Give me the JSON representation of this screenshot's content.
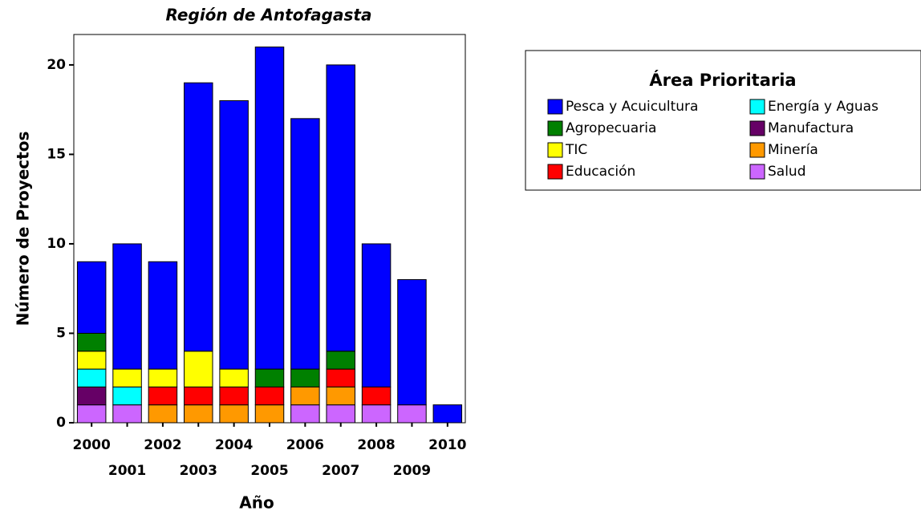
{
  "chart_data": {
    "type": "stacked_bar",
    "title": "Región de Antofagasta",
    "x_label": "Año",
    "y_label": "Número de Proyectos",
    "legend_title": "Área Prioritaria",
    "categories": [
      "2000",
      "2001",
      "2002",
      "2003",
      "2004",
      "2005",
      "2006",
      "2007",
      "2008",
      "2009",
      "2010"
    ],
    "series": [
      {
        "name": "Salud",
        "color": "#cc66ff",
        "values": [
          1,
          1,
          0,
          0,
          0,
          0,
          1,
          1,
          1,
          1,
          0
        ]
      },
      {
        "name": "Minería",
        "color": "#ff9900",
        "values": [
          0,
          0,
          1,
          1,
          1,
          1,
          1,
          1,
          0,
          0,
          0
        ]
      },
      {
        "name": "Manufactura",
        "color": "#660066",
        "values": [
          1,
          0,
          0,
          0,
          0,
          0,
          0,
          0,
          0,
          0,
          0
        ]
      },
      {
        "name": "Educación",
        "color": "#ff0000",
        "values": [
          0,
          0,
          1,
          1,
          1,
          1,
          0,
          1,
          1,
          0,
          0
        ]
      },
      {
        "name": "Energía y Aguas",
        "color": "#00ffff",
        "values": [
          1,
          1,
          0,
          0,
          0,
          0,
          0,
          0,
          0,
          0,
          0
        ]
      },
      {
        "name": "TIC",
        "color": "#ffff00",
        "values": [
          1,
          1,
          1,
          2,
          1,
          0,
          0,
          0,
          0,
          0,
          0
        ]
      },
      {
        "name": "Agropecuaria",
        "color": "#008000",
        "values": [
          1,
          0,
          0,
          0,
          0,
          1,
          1,
          1,
          0,
          0,
          0
        ]
      },
      {
        "name": "Pesca y Acuicultura",
        "color": "#0000ff",
        "values": [
          4,
          7,
          6,
          15,
          15,
          18,
          14,
          16,
          8,
          7,
          1
        ]
      }
    ],
    "ylim": [
      0,
      21.7
    ],
    "yticks": [
      0,
      5,
      10,
      15,
      20
    ]
  }
}
